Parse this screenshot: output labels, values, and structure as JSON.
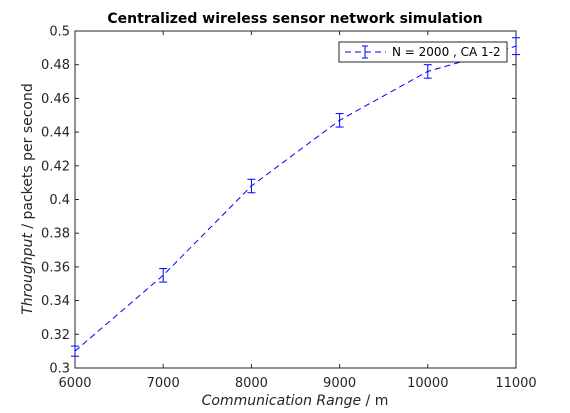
{
  "chart_data": {
    "type": "line",
    "title": "Centralized wireless sensor network simulation",
    "xlabel": {
      "italic": "Communication Range",
      "unit": " / m"
    },
    "ylabel": {
      "italic": "Throughput",
      "unit": " / packets per second"
    },
    "xlim": [
      6000,
      11000
    ],
    "ylim": [
      0.3,
      0.5
    ],
    "xticks": [
      6000,
      7000,
      8000,
      9000,
      10000,
      11000
    ],
    "yticks": [
      0.3,
      0.32,
      0.34,
      0.36,
      0.38,
      0.4,
      0.42,
      0.44,
      0.46,
      0.48,
      0.5
    ],
    "xtick_labels": [
      "6000",
      "7000",
      "8000",
      "9000",
      "10000",
      "11000"
    ],
    "ytick_labels": [
      "0.3",
      "0.32",
      "0.34",
      "0.36",
      "0.38",
      "0.4",
      "0.42",
      "0.44",
      "0.46",
      "0.48",
      "0.5"
    ],
    "grid": false,
    "legend_position": "top-right",
    "series": [
      {
        "name": "N = 2000 , CA 1-2",
        "color": "#0000ff",
        "line_style": "dashed",
        "marker": "errorbar",
        "x": [
          6000,
          7000,
          8000,
          9000,
          10000,
          11000
        ],
        "y": [
          0.31,
          0.355,
          0.408,
          0.447,
          0.476,
          0.491
        ],
        "err": [
          0.003,
          0.004,
          0.004,
          0.004,
          0.004,
          0.005
        ]
      }
    ]
  }
}
